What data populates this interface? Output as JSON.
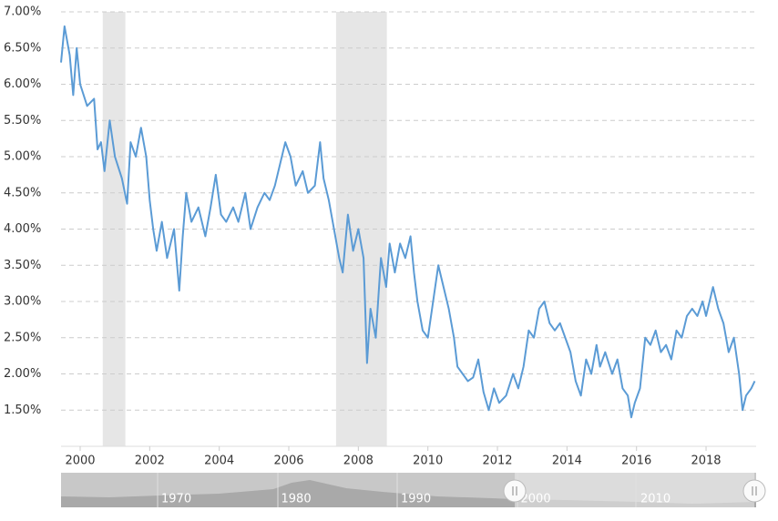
{
  "chart_data": {
    "type": "line",
    "xlim": [
      1999.45,
      2019.44
    ],
    "xticks": [
      2000,
      2002,
      2004,
      2006,
      2008,
      2010,
      2012,
      2014,
      2016,
      2018
    ],
    "ylim": [
      1.0,
      7.0
    ],
    "yticks": [
      {
        "value": 1.5,
        "label": "1.50%"
      },
      {
        "value": 2.0,
        "label": "2.00%"
      },
      {
        "value": 2.5,
        "label": "2.50%"
      },
      {
        "value": 3.0,
        "label": "3.00%"
      },
      {
        "value": 3.5,
        "label": "3.50%"
      },
      {
        "value": 4.0,
        "label": "4.00%"
      },
      {
        "value": 4.5,
        "label": "4.50%"
      },
      {
        "value": 5.0,
        "label": "5.00%"
      },
      {
        "value": 5.5,
        "label": "5.50%"
      },
      {
        "value": 6.0,
        "label": "6.00%"
      },
      {
        "value": 6.5,
        "label": "6.50%"
      },
      {
        "value": 7.0,
        "label": "7.00%"
      }
    ],
    "grid": true,
    "shaded_ranges": [
      [
        2000.65,
        2001.3
      ],
      [
        2007.36,
        2008.82
      ]
    ],
    "shade_color": "#e6e6e6",
    "series": [
      {
        "color": "#5b9bd5",
        "x": [
          1999.45,
          1999.55,
          1999.7,
          1999.8,
          1999.9,
          2000.0,
          2000.2,
          2000.4,
          2000.5,
          2000.6,
          2000.7,
          2000.85,
          2001.0,
          2001.2,
          2001.35,
          2001.45,
          2001.6,
          2001.75,
          2001.9,
          2002.0,
          2002.1,
          2002.2,
          2002.35,
          2002.5,
          2002.7,
          2002.85,
          2002.95,
          2003.05,
          2003.2,
          2003.4,
          2003.6,
          2003.75,
          2003.9,
          2004.05,
          2004.2,
          2004.4,
          2004.55,
          2004.75,
          2004.9,
          2005.1,
          2005.3,
          2005.45,
          2005.6,
          2005.8,
          2005.9,
          2006.05,
          2006.2,
          2006.4,
          2006.55,
          2006.75,
          2006.9,
          2007.0,
          2007.15,
          2007.3,
          2007.45,
          2007.55,
          2007.7,
          2007.85,
          2008.0,
          2008.15,
          2008.25,
          2008.35,
          2008.5,
          2008.65,
          2008.8,
          2008.9,
          2009.05,
          2009.2,
          2009.35,
          2009.5,
          2009.6,
          2009.7,
          2009.85,
          2010.0,
          2010.15,
          2010.3,
          2010.45,
          2010.6,
          2010.75,
          2010.85,
          2011.0,
          2011.15,
          2011.3,
          2011.45,
          2011.6,
          2011.75,
          2011.9,
          2012.05,
          2012.25,
          2012.45,
          2012.6,
          2012.75,
          2012.9,
          2013.05,
          2013.2,
          2013.35,
          2013.5,
          2013.65,
          2013.8,
          2013.95,
          2014.1,
          2014.25,
          2014.4,
          2014.55,
          2014.7,
          2014.85,
          2014.95,
          2015.1,
          2015.3,
          2015.45,
          2015.6,
          2015.75,
          2015.85,
          2015.95,
          2016.1,
          2016.25,
          2016.4,
          2016.55,
          2016.7,
          2016.85,
          2017.0,
          2017.15,
          2017.3,
          2017.45,
          2017.6,
          2017.75,
          2017.9,
          2018.0,
          2018.2,
          2018.35,
          2018.5,
          2018.65,
          2018.8,
          2018.95,
          2019.05,
          2019.15,
          2019.3,
          2019.4
        ],
        "values": [
          6.3,
          6.8,
          6.4,
          5.85,
          6.5,
          6.0,
          5.7,
          5.8,
          5.1,
          5.2,
          4.8,
          5.5,
          5.0,
          4.7,
          4.35,
          5.2,
          5.0,
          5.4,
          5.0,
          4.4,
          4.0,
          3.7,
          4.1,
          3.6,
          4.0,
          3.15,
          3.9,
          4.5,
          4.1,
          4.3,
          3.9,
          4.3,
          4.75,
          4.2,
          4.1,
          4.3,
          4.1,
          4.5,
          4.0,
          4.3,
          4.5,
          4.4,
          4.6,
          5.0,
          5.2,
          5.0,
          4.6,
          4.8,
          4.5,
          4.6,
          5.2,
          4.7,
          4.4,
          4.0,
          3.6,
          3.4,
          4.2,
          3.7,
          4.0,
          3.6,
          2.15,
          2.9,
          2.5,
          3.6,
          3.2,
          3.8,
          3.4,
          3.8,
          3.6,
          3.9,
          3.4,
          3.0,
          2.6,
          2.5,
          3.0,
          3.5,
          3.2,
          2.9,
          2.5,
          2.1,
          2.0,
          1.9,
          1.95,
          2.2,
          1.75,
          1.5,
          1.8,
          1.6,
          1.7,
          2.0,
          1.8,
          2.1,
          2.6,
          2.5,
          2.9,
          3.0,
          2.7,
          2.6,
          2.7,
          2.5,
          2.3,
          1.9,
          1.7,
          2.2,
          2.0,
          2.4,
          2.1,
          2.3,
          2.0,
          2.2,
          1.8,
          1.7,
          1.4,
          1.6,
          1.8,
          2.5,
          2.4,
          2.6,
          2.3,
          2.4,
          2.2,
          2.6,
          2.5,
          2.8,
          2.9,
          2.8,
          3.0,
          2.8,
          3.2,
          2.9,
          2.7,
          2.3,
          2.5,
          2.0,
          1.5,
          1.7,
          1.8,
          1.9
        ]
      }
    ],
    "navigator": {
      "labels": [
        "1970",
        "1980",
        "1990",
        "2000",
        "2010"
      ]
    }
  }
}
